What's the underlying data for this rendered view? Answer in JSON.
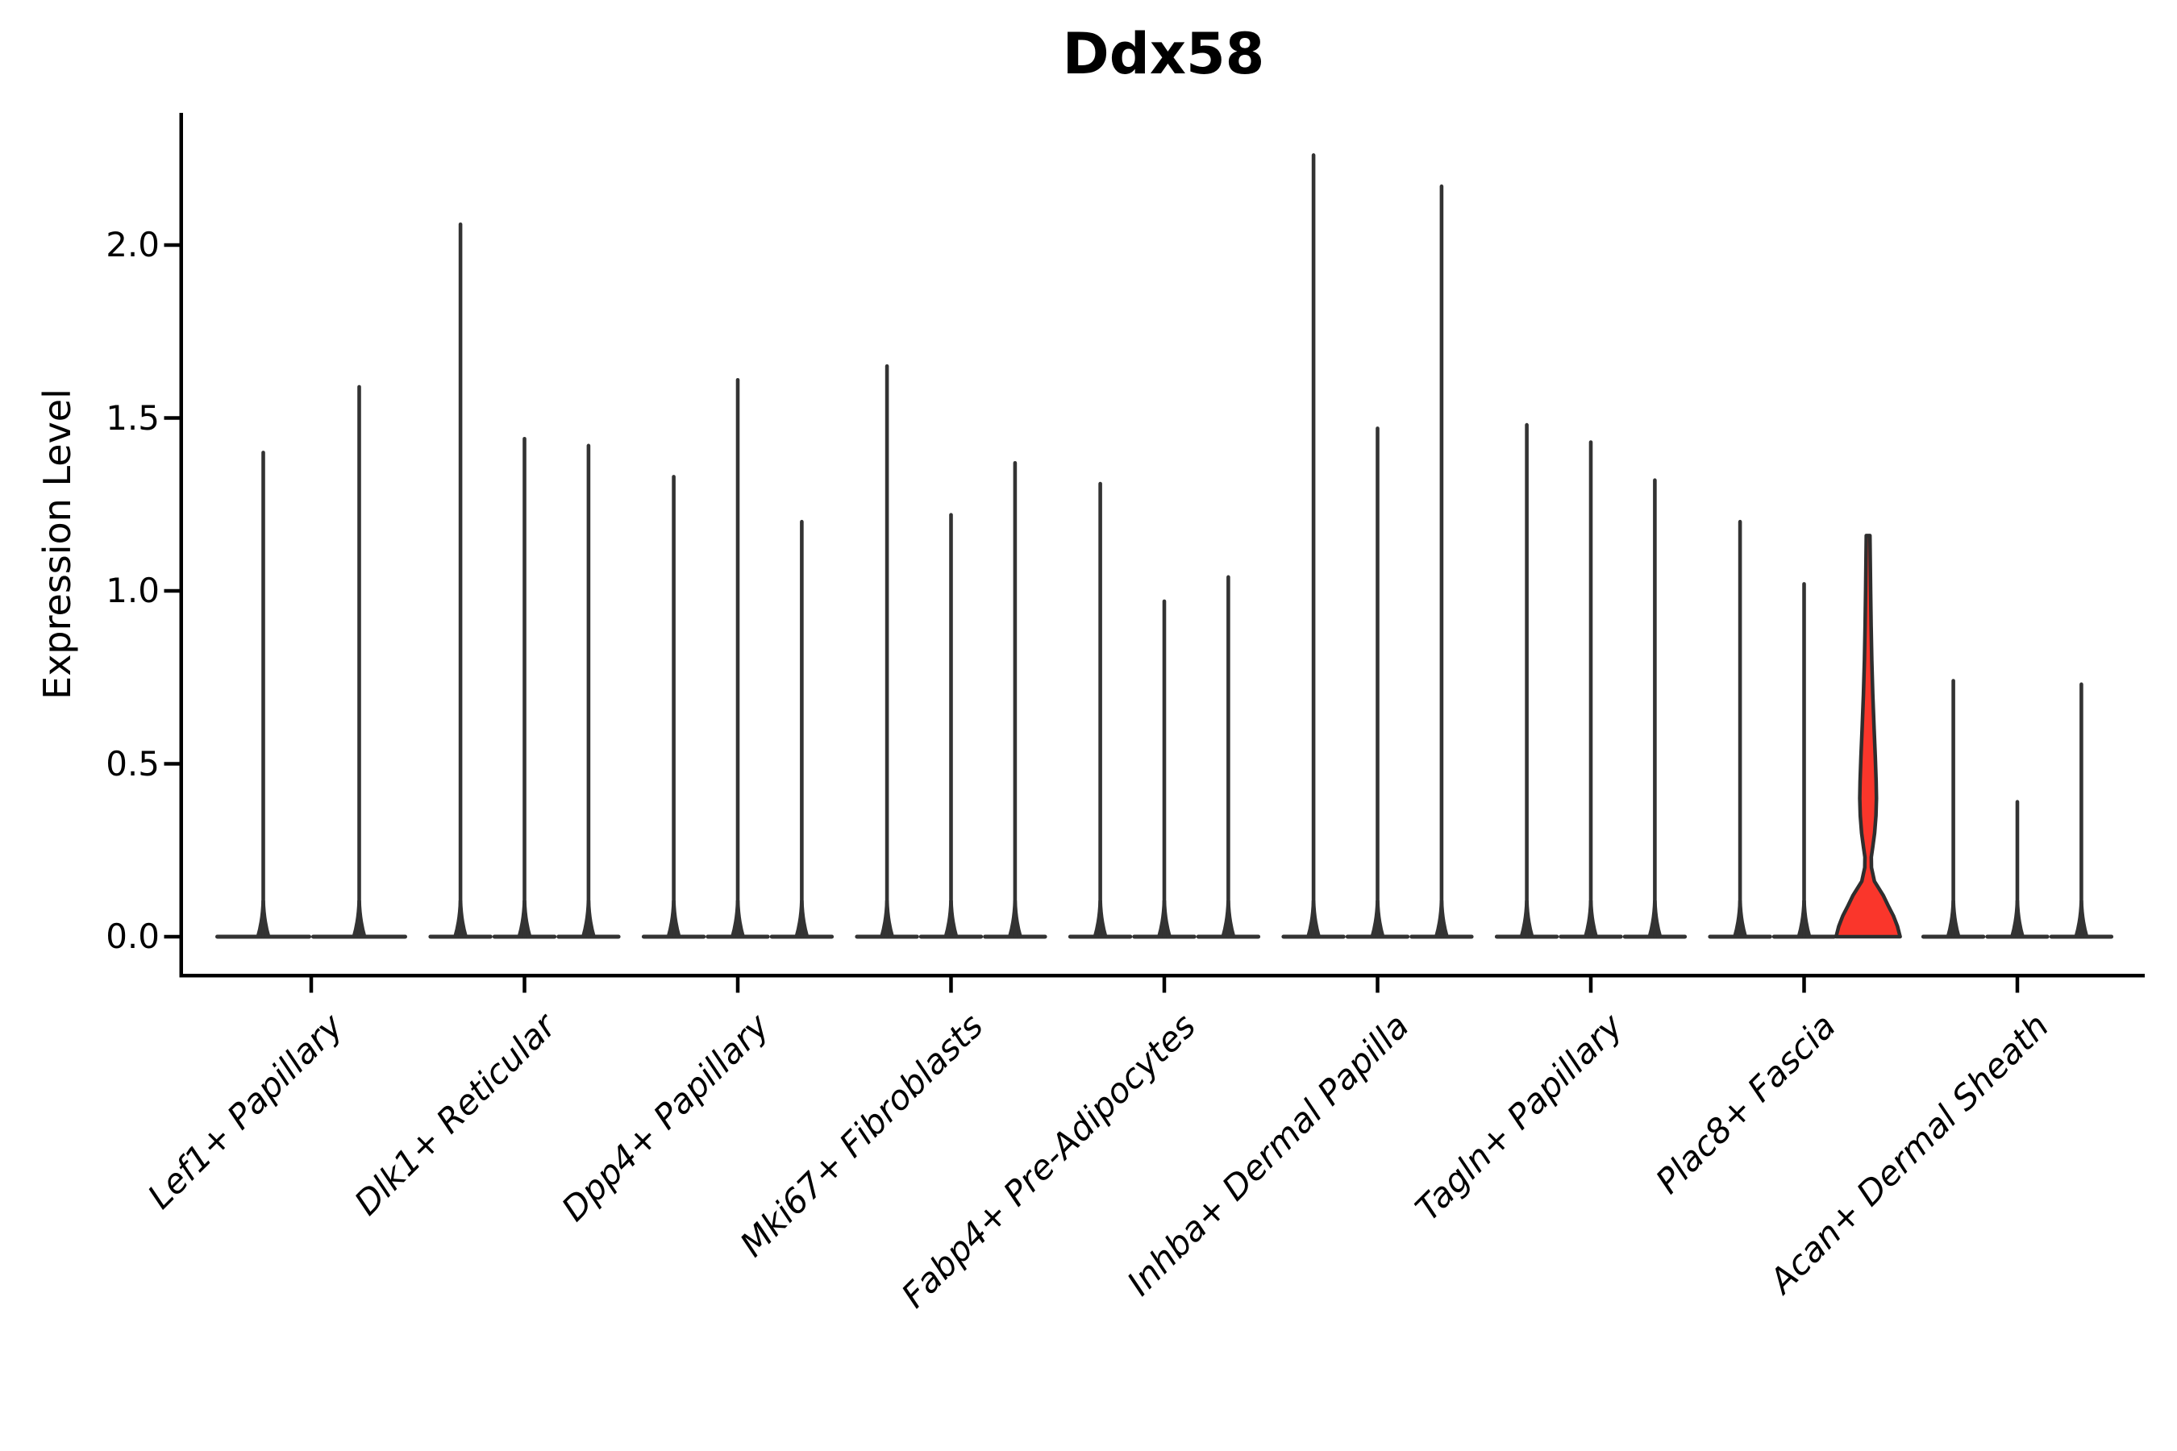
{
  "figure": {
    "title": "Ddx58",
    "background": "#ffffff"
  },
  "chart_data": {
    "type": "violin",
    "title": "Ddx58",
    "xlabel": "",
    "ylabel": "Expression Level",
    "ylim": [
      -0.11,
      2.38
    ],
    "yticks": [
      0.0,
      0.5,
      1.0,
      1.5,
      2.0
    ],
    "ytick_labels": [
      "0.0",
      "0.5",
      "1.0",
      "1.5",
      "2.0"
    ],
    "grid": false,
    "legend_position": "none",
    "categories": [
      "Lef1+ Papillary",
      "Dlk1+ Reticular",
      "Dpp4+ Papillary",
      "Mki67+ Fibroblasts",
      "Fabp4+ Pre-Adipocytes",
      "Inhba+ Dermal Papilla",
      "Tagln+ Papillary",
      "Plac8+ Fascia",
      "Acan+ Dermal Sheath"
    ],
    "groups": [
      {
        "category": "Lef1+ Papillary",
        "violins": [
          {
            "max": 1.4
          },
          {
            "max": 1.59
          }
        ]
      },
      {
        "category": "Dlk1+ Reticular",
        "violins": [
          {
            "max": 2.06
          },
          {
            "max": 1.44
          },
          {
            "max": 1.42
          }
        ]
      },
      {
        "category": "Dpp4+ Papillary",
        "violins": [
          {
            "max": 1.33
          },
          {
            "max": 1.61
          },
          {
            "max": 1.2
          }
        ]
      },
      {
        "category": "Mki67+ Fibroblasts",
        "violins": [
          {
            "max": 1.65
          },
          {
            "max": 1.22
          },
          {
            "max": 1.37
          }
        ]
      },
      {
        "category": "Fabp4+ Pre-Adipocytes",
        "violins": [
          {
            "max": 1.31
          },
          {
            "max": 0.97
          },
          {
            "max": 1.04
          }
        ]
      },
      {
        "category": "Inhba+ Dermal Papilla",
        "violins": [
          {
            "max": 2.26
          },
          {
            "max": 1.47
          },
          {
            "max": 2.17
          }
        ]
      },
      {
        "category": "Tagln+ Papillary",
        "violins": [
          {
            "max": 1.48
          },
          {
            "max": 1.43
          },
          {
            "max": 1.32
          }
        ]
      },
      {
        "category": "Plac8+ Fascia",
        "violins": [
          {
            "max": 1.2
          },
          {
            "max": 1.02
          },
          {
            "max": 1.16,
            "highlight": true,
            "profile": [
              [
                1.16,
                0.055
              ],
              [
                1.08,
                0.065
              ],
              [
                1.0,
                0.075
              ],
              [
                0.9,
                0.09
              ],
              [
                0.8,
                0.11
              ],
              [
                0.7,
                0.14
              ],
              [
                0.6,
                0.18
              ],
              [
                0.52,
                0.215
              ],
              [
                0.45,
                0.24
              ],
              [
                0.4,
                0.25
              ],
              [
                0.35,
                0.235
              ],
              [
                0.3,
                0.195
              ],
              [
                0.26,
                0.14
              ],
              [
                0.23,
                0.095
              ],
              [
                0.2,
                0.1
              ],
              [
                0.16,
                0.19
              ],
              [
                0.12,
                0.45
              ],
              [
                0.09,
                0.6
              ],
              [
                0.06,
                0.76
              ],
              [
                0.03,
                0.88
              ],
              [
                0.0,
                0.96
              ]
            ]
          }
        ]
      },
      {
        "category": "Acan+ Dermal Sheath",
        "violins": [
          {
            "max": 0.74
          },
          {
            "max": 0.39
          },
          {
            "max": 0.73
          }
        ]
      }
    ],
    "colors": {
      "violin_line": "#333333",
      "highlight_fill": "#FA362B",
      "highlight_edge": "#2E2E2E",
      "axis": "#000000",
      "text": "#000000"
    }
  }
}
